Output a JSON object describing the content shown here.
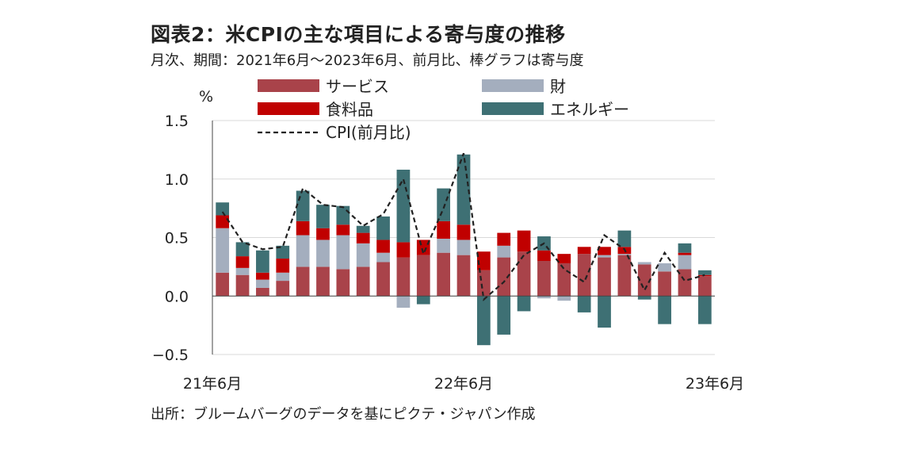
{
  "header": {
    "title": "図表2：米CPIの主な項目による寄与度の推移",
    "subtitle": "月次、期間：2021年6月～2023年6月、前月比、棒グラフは寄与度"
  },
  "footer": {
    "source": "出所：ブルームバーグのデータを基にピクテ・ジャパン作成"
  },
  "colors": {
    "services": "#A9434A",
    "goods": "#A4AEBE",
    "food": "#C00000",
    "energy": "#3E7074",
    "cpi_line": "#222222",
    "gridline": "#d9d9d9",
    "axis": "#444444"
  },
  "chart_data": {
    "type": "bar",
    "stacked": true,
    "yunit": "%",
    "ylim": [
      -0.5,
      1.5
    ],
    "yticks": [
      "1.5",
      "1.0",
      "0.5",
      "0.0",
      "−0.5"
    ],
    "ytick_values": [
      1.5,
      1.0,
      0.5,
      0.0,
      -0.5
    ],
    "grid": true,
    "legend_position": "top",
    "x_tick_labels": [
      {
        "index": 0,
        "label": "21年6月"
      },
      {
        "index": 12,
        "label": "22年6月"
      },
      {
        "index": 24,
        "label": "23年6月"
      }
    ],
    "categories": [
      "2021-06",
      "2021-07",
      "2021-08",
      "2021-09",
      "2021-10",
      "2021-11",
      "2021-12",
      "2022-01",
      "2022-02",
      "2022-03",
      "2022-04",
      "2022-05",
      "2022-06",
      "2022-07",
      "2022-08",
      "2022-09",
      "2022-10",
      "2022-11",
      "2022-12",
      "2023-01",
      "2023-02",
      "2023-03",
      "2023-04",
      "2023-05",
      "2023-06"
    ],
    "series": [
      {
        "name": "サービス",
        "key": "services",
        "values": [
          0.2,
          0.18,
          0.07,
          0.13,
          0.25,
          0.25,
          0.23,
          0.25,
          0.29,
          0.33,
          0.35,
          0.37,
          0.35,
          0.22,
          0.33,
          0.38,
          0.3,
          0.28,
          0.36,
          0.33,
          0.35,
          0.27,
          0.21,
          0.23,
          0.17
        ]
      },
      {
        "name": "財",
        "key": "goods",
        "values": [
          0.38,
          0.06,
          0.07,
          0.07,
          0.27,
          0.23,
          0.29,
          0.2,
          0.08,
          -0.1,
          0.0,
          0.12,
          0.13,
          0.0,
          0.1,
          0.0,
          -0.02,
          -0.04,
          0.0,
          0.02,
          0.01,
          0.02,
          0.07,
          0.12,
          0.0
        ]
      },
      {
        "name": "食料品",
        "key": "food",
        "values": [
          0.11,
          0.1,
          0.06,
          0.12,
          0.12,
          0.1,
          0.09,
          0.09,
          0.11,
          0.13,
          0.13,
          0.15,
          0.13,
          0.16,
          0.11,
          0.18,
          0.09,
          0.08,
          0.06,
          0.07,
          0.06,
          0.0,
          0.0,
          0.02,
          0.01
        ]
      },
      {
        "name": "エネルギー",
        "key": "energy",
        "values": [
          0.11,
          0.12,
          0.19,
          0.11,
          0.26,
          0.2,
          0.16,
          0.06,
          0.2,
          0.62,
          -0.07,
          0.28,
          0.6,
          -0.42,
          -0.33,
          -0.13,
          0.12,
          0.0,
          -0.14,
          -0.27,
          0.14,
          -0.03,
          -0.24,
          0.08,
          -0.24
        ]
      }
    ],
    "extra_series": [
      {
        "name": "",
        "key": "energy_extra",
        "values": [
          0,
          0,
          0,
          0,
          0,
          0,
          0,
          0,
          0,
          0,
          0,
          0,
          0,
          0,
          0,
          0,
          0,
          0,
          0,
          0,
          0,
          0,
          0,
          0,
          0.04
        ]
      }
    ],
    "line": {
      "name": "CPI(前月比)",
      "key": "cpi",
      "values": [
        0.72,
        0.46,
        0.4,
        0.42,
        0.92,
        0.78,
        0.76,
        0.6,
        0.7,
        1.0,
        0.36,
        0.75,
        1.22,
        -0.03,
        0.12,
        0.35,
        0.45,
        0.23,
        0.12,
        0.52,
        0.4,
        0.05,
        0.37,
        0.13,
        0.18
      ]
    }
  }
}
